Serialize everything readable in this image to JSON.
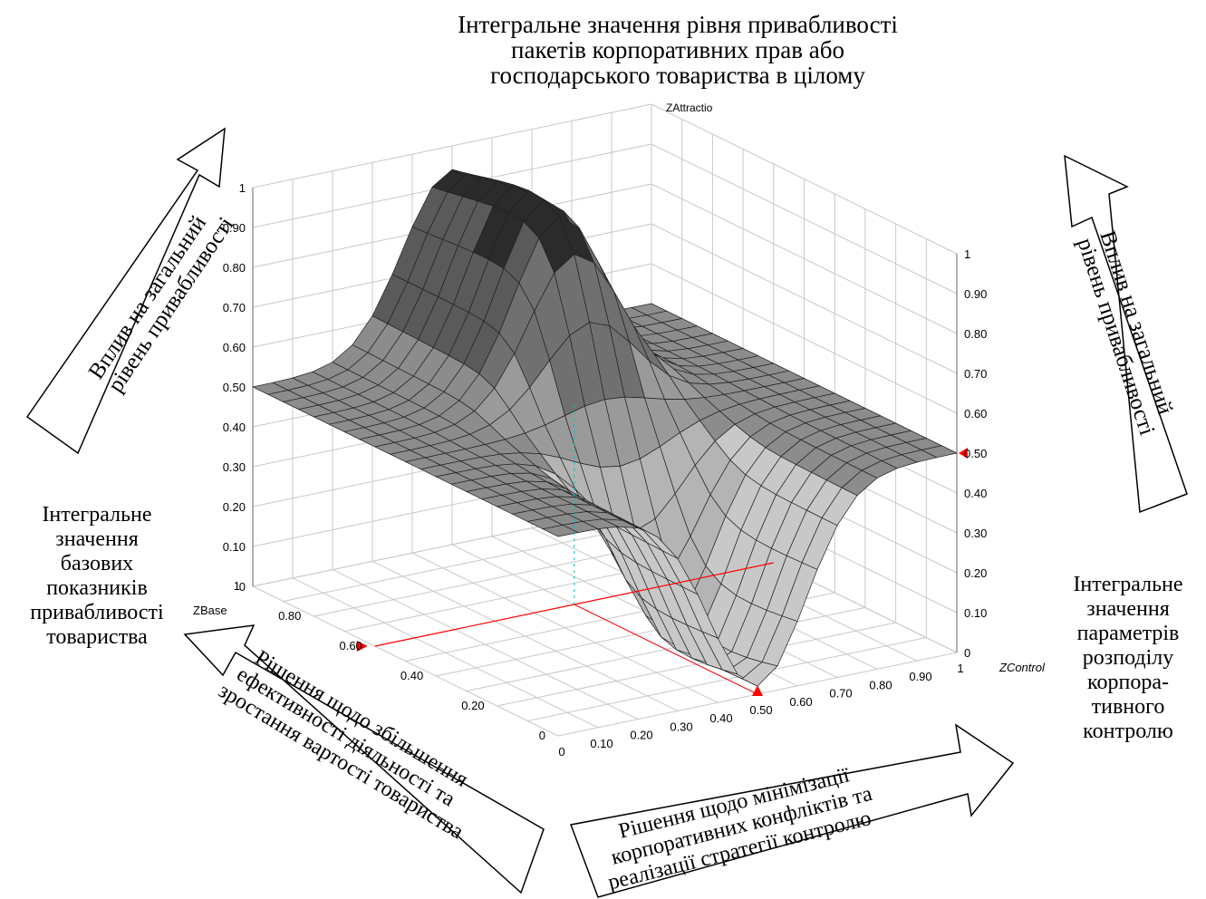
{
  "title_lines": [
    "Інтегральне значення рівня привабливості",
    "пакетів корпоративних прав або",
    "господарського товариства в цілому"
  ],
  "left_arrow_lines": [
    "Вплив на загальний",
    "рівень привабливості"
  ],
  "right_arrow_lines": [
    "Вплив на загальний",
    "рівень привабливості"
  ],
  "left_caption_lines": [
    "Інтегральне",
    "значення",
    "базових",
    "показників",
    "привабливості",
    "товариства"
  ],
  "right_caption_lines": [
    "Інтегральне",
    "значення",
    "параметрів",
    "розподілу",
    "корпора-",
    "тивного",
    "контролю"
  ],
  "bottom_left_arrow_lines": [
    "Рішення щодо збільшення",
    "ефективності діяльності та",
    "зростання вартості товариства"
  ],
  "bottom_right_arrow_lines": [
    "Рішення щодо мінімізації",
    "корпоративних конфліктів та",
    "реалізації стратегії контролю"
  ],
  "colors": {
    "surface_dark": "#2b2b2b",
    "surface_mid": "#8a8a8a",
    "surface_light": "#c8c8c8",
    "grid": "#c8c8c8",
    "marker": "#ff0000",
    "cyan_marker": "#00c0c0"
  },
  "chart_data": {
    "type": "surface3d",
    "axes": {
      "x": {
        "label": "ZControl",
        "range": [
          0,
          1
        ],
        "ticks": [
          "0",
          "0.10",
          "0.20",
          "0.30",
          "0.40",
          "0.50",
          "0.60",
          "0.70",
          "0.80",
          "0.90",
          "1"
        ]
      },
      "y": {
        "label": "ZBase",
        "range": [
          0,
          1
        ],
        "ticks": [
          "0",
          "0.20",
          "0.40",
          "0.60",
          "0.80",
          "1"
        ]
      },
      "z": {
        "label": "ZAttractio",
        "range": [
          0,
          1
        ],
        "ticks": [
          "0",
          "0.10",
          "0.20",
          "0.30",
          "0.40",
          "0.50",
          "0.60",
          "0.70",
          "0.80",
          "0.90",
          "1"
        ]
      }
    },
    "grid": true,
    "surface_description_points": [
      {
        "x": 0.0,
        "y": 0.0,
        "z": 0.5
      },
      {
        "x": 1.0,
        "y": 0.0,
        "z": 0.5
      },
      {
        "x": 0.0,
        "y": 1.0,
        "z": 0.5
      },
      {
        "x": 0.5,
        "y": 1.0,
        "z": 0.96
      },
      {
        "x": 1.0,
        "y": 1.0,
        "z": 0.5
      },
      {
        "x": 0.5,
        "y": 0.0,
        "z": 0.02
      }
    ],
    "markers": {
      "x_value": 0.5,
      "y_value": 0.6,
      "z_value": 0.5
    }
  }
}
